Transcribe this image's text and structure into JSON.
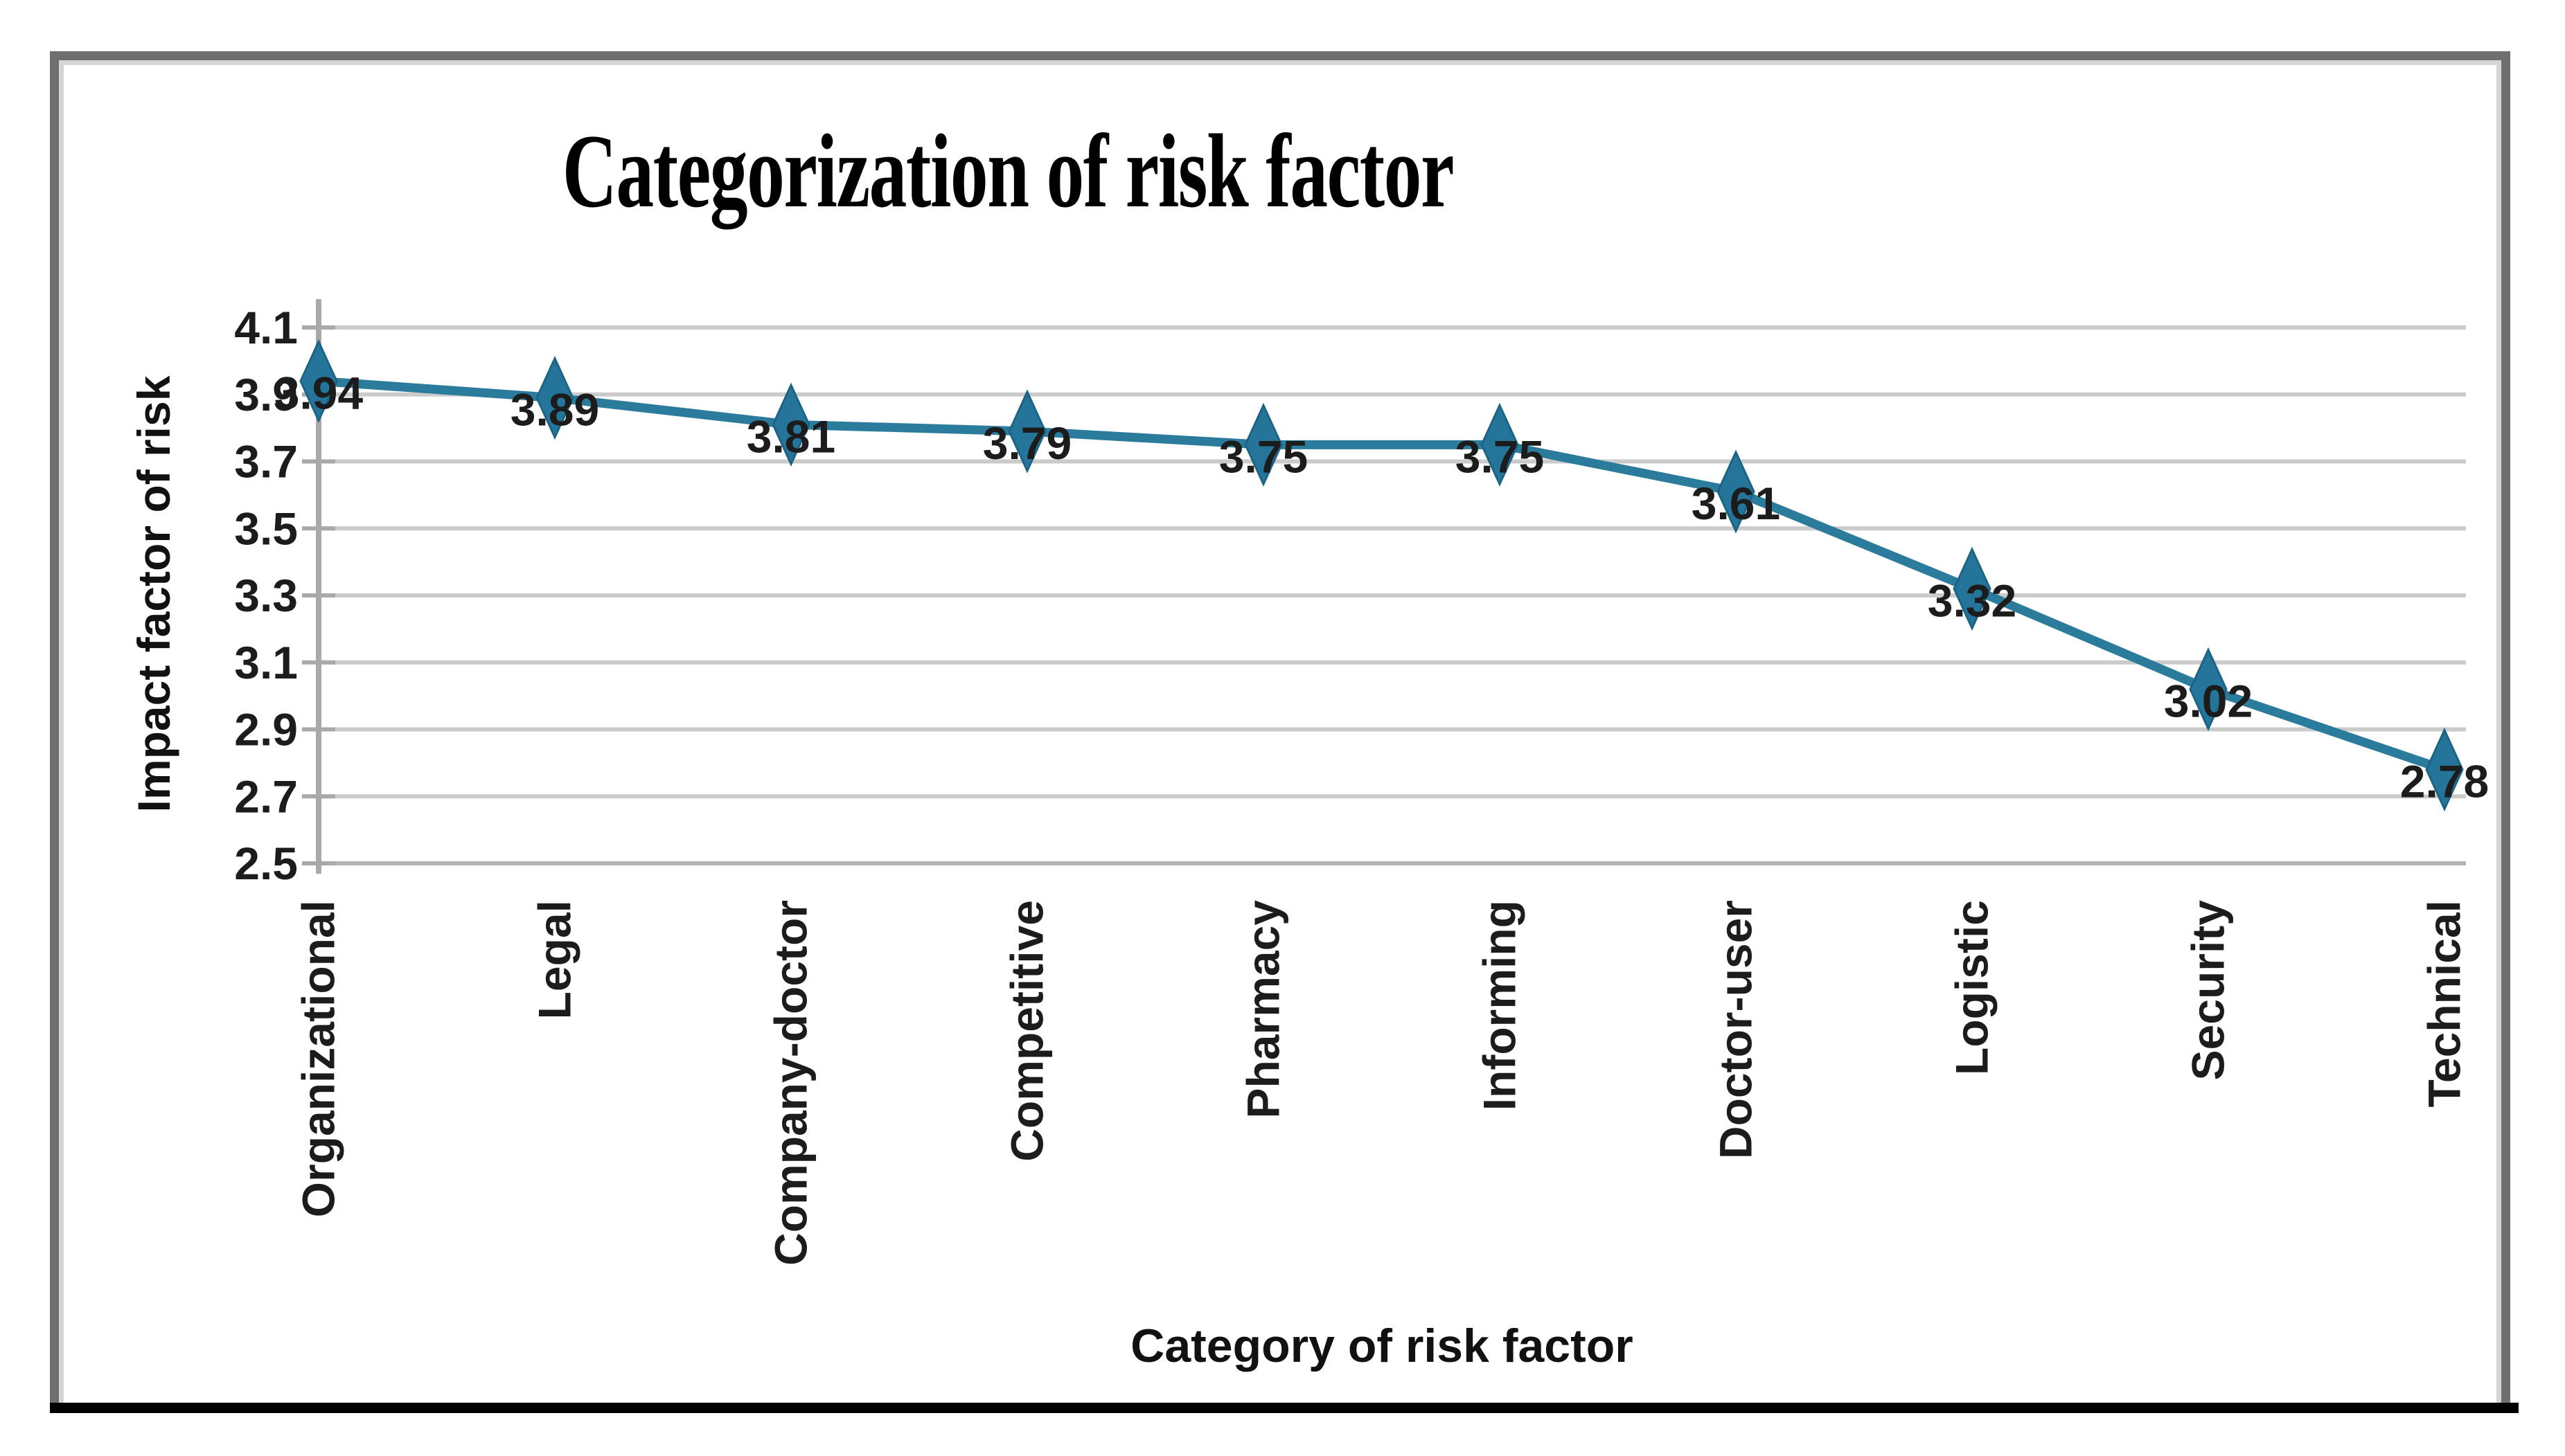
{
  "figure": {
    "title": "Categorization of risk factor",
    "x_axis_title": "Category of risk factor",
    "y_axis_title": "Impact factor of risk"
  },
  "chart_data": {
    "type": "line",
    "title": "Categorization of risk factor",
    "xlabel": "Category of risk factor",
    "ylabel": "Impact factor of risk",
    "categories": [
      "Organizational",
      "Legal",
      "Company-doctor",
      "Competitive",
      "Pharmacy",
      "Informing",
      "Doctor-user",
      "Logistic",
      "Security",
      "Technical"
    ],
    "series": [
      {
        "name": "Impact factor of risk",
        "values": [
          3.94,
          3.89,
          3.81,
          3.79,
          3.75,
          3.75,
          3.61,
          3.32,
          3.02,
          2.78
        ]
      }
    ],
    "data_labels": [
      "3.94",
      "3.89",
      "3.81",
      "3.79",
      "3.75",
      "3.75",
      "3.61",
      "3.32",
      "3.02",
      "2.78"
    ],
    "y_ticks": [
      "4.1",
      "3.9",
      "3.7",
      "3.5",
      "3.3",
      "3.1",
      "2.9",
      "2.7",
      "2.5"
    ],
    "ylim": [
      2.5,
      4.1
    ],
    "ytick_step": 0.2,
    "grid": "horizontal",
    "legend": "none",
    "marker": "diamond",
    "colors": {
      "line": "#2b7c9c",
      "marker": "#25759a",
      "marker_edge": "#1c6484",
      "gridline": "#cbcbcb",
      "gridline_bottom": "#b5b5b5",
      "axis": "#a9a9a9",
      "frame": "#6f6f6f",
      "frame_highlight": "#d5d5d5",
      "bottom_rule": "#000000",
      "text": "#1c1c1c"
    }
  }
}
